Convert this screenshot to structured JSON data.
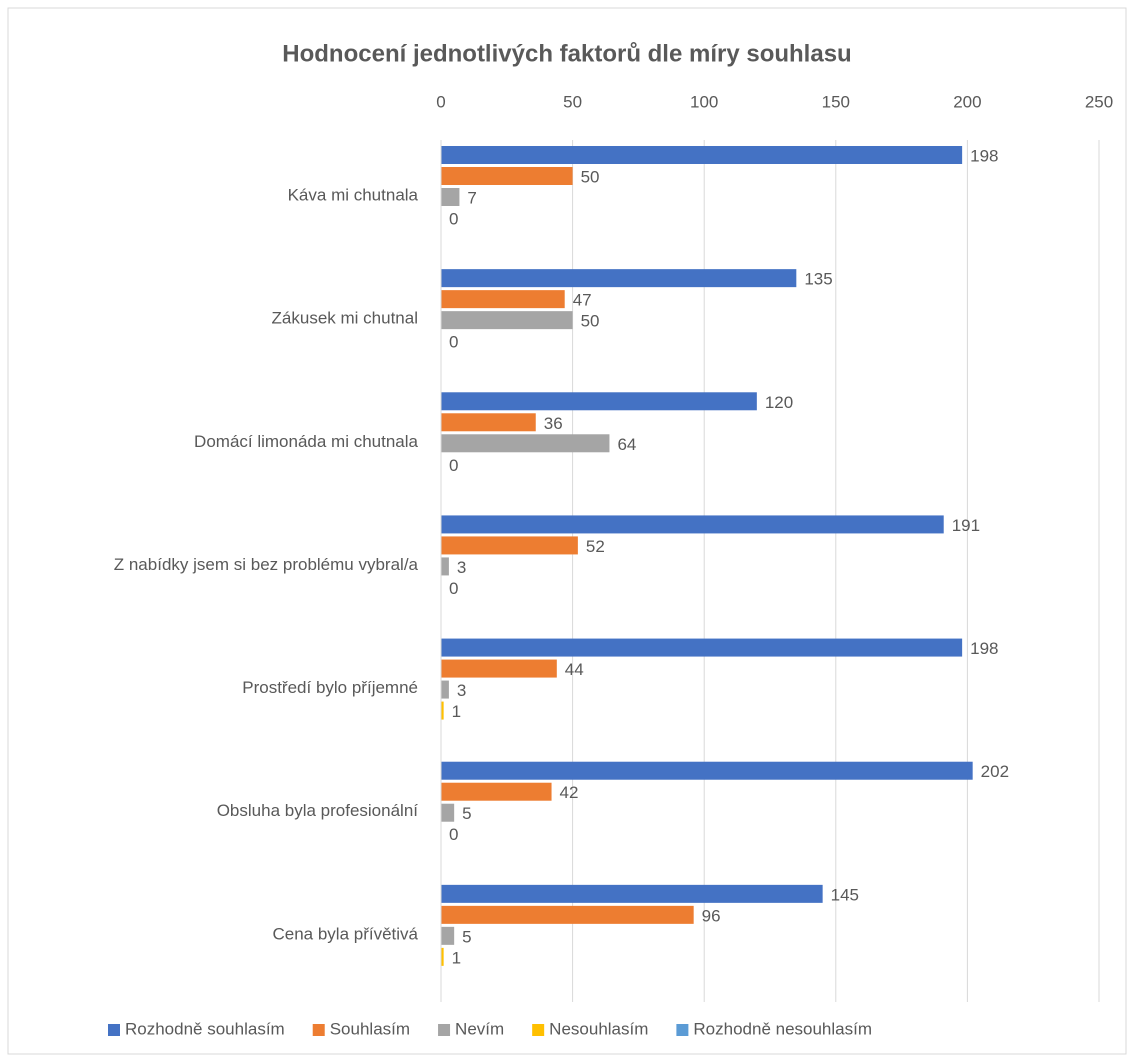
{
  "chart_data": {
    "type": "bar",
    "orientation": "horizontal",
    "title": "Hodnocení jednotlivých faktorů dle míry souhlasu",
    "categories": [
      "Káva mi chutnala",
      "Zákusek mi chutnal",
      "Domácí limonáda mi chutnala",
      "Z nabídky jsem si bez problému vybral/a",
      "Prostředí bylo příjemné",
      "Obsluha byla profesionální",
      "Cena byla přívětivá"
    ],
    "series": [
      {
        "name": "Rozhodně souhlasím",
        "color": "#4472c4",
        "values": [
          198,
          135,
          120,
          191,
          198,
          202,
          145
        ]
      },
      {
        "name": "Souhlasím",
        "color": "#ed7d31",
        "values": [
          50,
          47,
          36,
          52,
          44,
          42,
          96
        ]
      },
      {
        "name": "Nevím",
        "color": "#a5a5a5",
        "values": [
          7,
          50,
          64,
          3,
          3,
          5,
          5
        ]
      },
      {
        "name": "Nesouhlasím",
        "color": "#ffc000",
        "values": [
          0,
          0,
          0,
          0,
          1,
          0,
          1
        ]
      },
      {
        "name": "Rozhodně nesouhlasím",
        "color": "#5b9bd5",
        "values": [
          0,
          0,
          0,
          0,
          0,
          0,
          0
        ]
      }
    ],
    "xlim": [
      0,
      250
    ],
    "xticks": [
      0,
      50,
      100,
      150,
      200,
      250
    ],
    "grid": true,
    "legend": "bottom"
  }
}
